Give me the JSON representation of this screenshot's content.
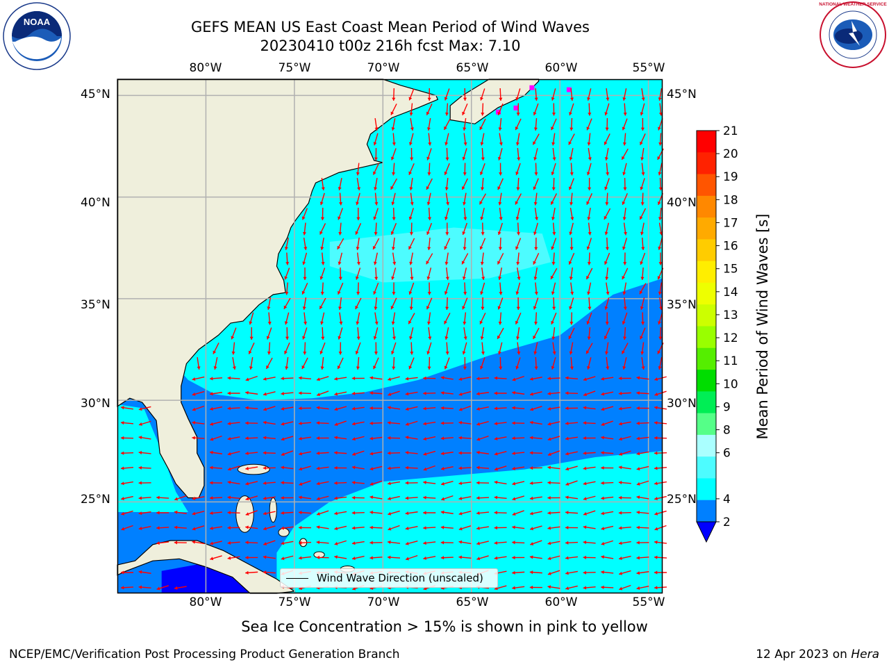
{
  "title": "GEFS MEAN US East Coast Mean Period of Wind Waves",
  "subtitle": "20230410 t00z 216h fcst   Max: 7.10",
  "map": {
    "lon_labels": [
      "80°W",
      "75°W",
      "70°W",
      "65°W",
      "60°W",
      "55°W"
    ],
    "lat_labels": [
      "45°N",
      "40°N",
      "35°N",
      "30°N",
      "25°N"
    ],
    "lon_range": [
      -85,
      -54.2
    ],
    "lat_range": [
      20.5,
      45.8
    ],
    "lon_ticks": [
      -80,
      -75,
      -70,
      -65,
      -60,
      -55
    ],
    "lat_ticks": [
      45,
      40,
      35,
      30,
      25
    ],
    "colors": {
      "land": "#efefdc",
      "ocean_light": "#00ffff",
      "ocean_lighter": "#4dfcff",
      "ocean_blue": "#0080ff",
      "ocean_dark": "#0000ff",
      "arrow": "#ff0000",
      "grid": "#b0b0b0",
      "coast": "#000000",
      "ice": "#ff00ff"
    }
  },
  "legend": {
    "label": "Wind Wave Direction (unscaled)"
  },
  "colorbar": {
    "label": "Mean Period of Wind Waves [s]",
    "ticks": [
      "21",
      "20",
      "19",
      "18",
      "17",
      "16",
      "15",
      "14",
      "13",
      "12",
      "11",
      "10",
      "9",
      "8",
      "6",
      "4",
      "2"
    ],
    "colors": [
      "#ff0000",
      "#ff2200",
      "#ff5500",
      "#ff8800",
      "#ffaa00",
      "#ffcc00",
      "#ffee00",
      "#eeff00",
      "#ccff00",
      "#99ff00",
      "#55ee00",
      "#00dd00",
      "#00ee55",
      "#55ff88",
      "#aaffff",
      "#4dfcff",
      "#00ffff",
      "#0080ff"
    ],
    "under_color": "#0000ff"
  },
  "footer_note": "Sea Ice Concentration > 15% is shown in pink to yellow",
  "footer_left": "NCEP/EMC/Verification Post Processing Product Generation Branch",
  "footer_right": {
    "date": "12 Apr 2023 on ",
    "host": "Hera"
  },
  "logos": {
    "left": "NOAA",
    "right": "NATIONAL WEATHER SERVICE"
  }
}
